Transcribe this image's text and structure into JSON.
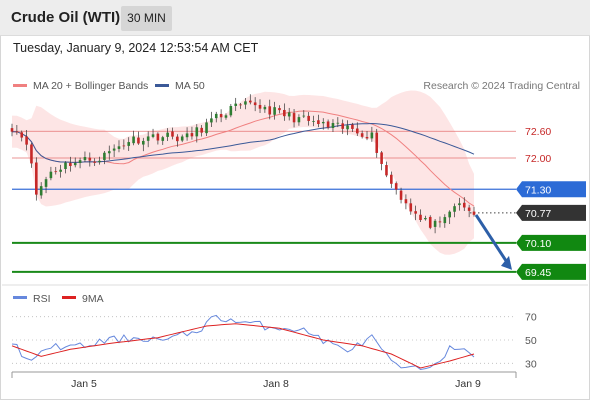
{
  "header": {
    "instrument": "Crude Oil (WTI)",
    "timeframe": "30 MIN",
    "datetime": "Tuesday, January 9, 2024 12:53:54 AM CET"
  },
  "legend": {
    "ma20_label": "MA 20 + Bollinger Bands",
    "ma50_label": "MA 50",
    "credit": "Research © 2024 Trading Central",
    "rsi_label": "RSI",
    "rsi_ma_label": "9MA"
  },
  "colors": {
    "bullish_candle": "#2e7d32",
    "bearish_candle": "#c62828",
    "bollinger_fill": "#fde0e0",
    "ma20": "#f08080",
    "ma50": "#3b5998",
    "resistance": "#e57373",
    "pivot": "#3a6fd8",
    "support": "#1a8a1a",
    "last_price": "#333333",
    "arrow": "#2d5fa8",
    "rsi": "#6688dd",
    "rsi_ma": "#dd2222"
  },
  "chart_data": [
    {
      "type": "candlestick",
      "title": "Crude Oil (WTI)",
      "timeframe": "30 MIN",
      "x_tick_labels": [
        "Jan 5",
        "Jan 8",
        "Jan 9"
      ],
      "ylim": [
        69.2,
        73.3
      ],
      "indicators": [
        "MA 20 + Bollinger Bands",
        "MA 50"
      ],
      "key_levels": [
        {
          "value": 72.6,
          "label": "72.60",
          "kind": "resistance"
        },
        {
          "value": 72.0,
          "label": "72.00",
          "kind": "resistance"
        },
        {
          "value": 71.3,
          "label": "71.30",
          "kind": "pivot"
        },
        {
          "value": 70.77,
          "label": "70.77",
          "kind": "last"
        },
        {
          "value": 70.1,
          "label": "70.10",
          "kind": "support"
        },
        {
          "value": 69.45,
          "label": "69.45",
          "kind": "support"
        }
      ],
      "forecast_arrow": {
        "from": 70.77,
        "to": 69.45
      },
      "close_path": [
        {
          "t": 0,
          "v": 72.7
        },
        {
          "t": 3,
          "v": 72.4
        },
        {
          "t": 5,
          "v": 71.2
        },
        {
          "t": 8,
          "v": 71.7
        },
        {
          "t": 12,
          "v": 71.9
        },
        {
          "t": 18,
          "v": 72.0
        },
        {
          "t": 24,
          "v": 72.4
        },
        {
          "t": 30,
          "v": 72.5
        },
        {
          "t": 36,
          "v": 72.45
        },
        {
          "t": 40,
          "v": 72.75
        },
        {
          "t": 45,
          "v": 73.1
        },
        {
          "t": 50,
          "v": 73.2
        },
        {
          "t": 55,
          "v": 73.0
        },
        {
          "t": 60,
          "v": 72.85
        },
        {
          "t": 65,
          "v": 72.7
        },
        {
          "t": 70,
          "v": 72.65
        },
        {
          "t": 74,
          "v": 72.5
        },
        {
          "t": 77,
          "v": 71.6
        },
        {
          "t": 80,
          "v": 71.15
        },
        {
          "t": 84,
          "v": 70.6
        },
        {
          "t": 88,
          "v": 70.45
        },
        {
          "t": 91,
          "v": 70.95
        },
        {
          "t": 95,
          "v": 70.77
        }
      ]
    },
    {
      "type": "line",
      "title": "RSI",
      "series_names": [
        "RSI",
        "9MA"
      ],
      "y_tick_labels": [
        "70",
        "50",
        "30"
      ],
      "ylim": [
        20,
        80
      ],
      "x_tick_labels": [
        "Jan 5",
        "Jan 8",
        "Jan 9"
      ],
      "rsi_path": [
        {
          "t": 0,
          "v": 48
        },
        {
          "t": 4,
          "v": 30
        },
        {
          "t": 8,
          "v": 45
        },
        {
          "t": 14,
          "v": 44
        },
        {
          "t": 20,
          "v": 50
        },
        {
          "t": 26,
          "v": 52
        },
        {
          "t": 32,
          "v": 50
        },
        {
          "t": 38,
          "v": 58
        },
        {
          "t": 42,
          "v": 70
        },
        {
          "t": 46,
          "v": 66
        },
        {
          "t": 52,
          "v": 62
        },
        {
          "t": 58,
          "v": 60
        },
        {
          "t": 62,
          "v": 55
        },
        {
          "t": 66,
          "v": 45
        },
        {
          "t": 70,
          "v": 42
        },
        {
          "t": 74,
          "v": 52
        },
        {
          "t": 78,
          "v": 30
        },
        {
          "t": 82,
          "v": 24
        },
        {
          "t": 86,
          "v": 28
        },
        {
          "t": 90,
          "v": 42
        },
        {
          "t": 95,
          "v": 38
        }
      ],
      "rsi_ma_path": [
        {
          "t": 0,
          "v": 45
        },
        {
          "t": 6,
          "v": 36
        },
        {
          "t": 12,
          "v": 42
        },
        {
          "t": 20,
          "v": 47
        },
        {
          "t": 30,
          "v": 52
        },
        {
          "t": 40,
          "v": 62
        },
        {
          "t": 46,
          "v": 64
        },
        {
          "t": 55,
          "v": 60
        },
        {
          "t": 64,
          "v": 50
        },
        {
          "t": 72,
          "v": 45
        },
        {
          "t": 78,
          "v": 38
        },
        {
          "t": 84,
          "v": 26
        },
        {
          "t": 90,
          "v": 32
        },
        {
          "t": 95,
          "v": 38
        }
      ]
    }
  ]
}
